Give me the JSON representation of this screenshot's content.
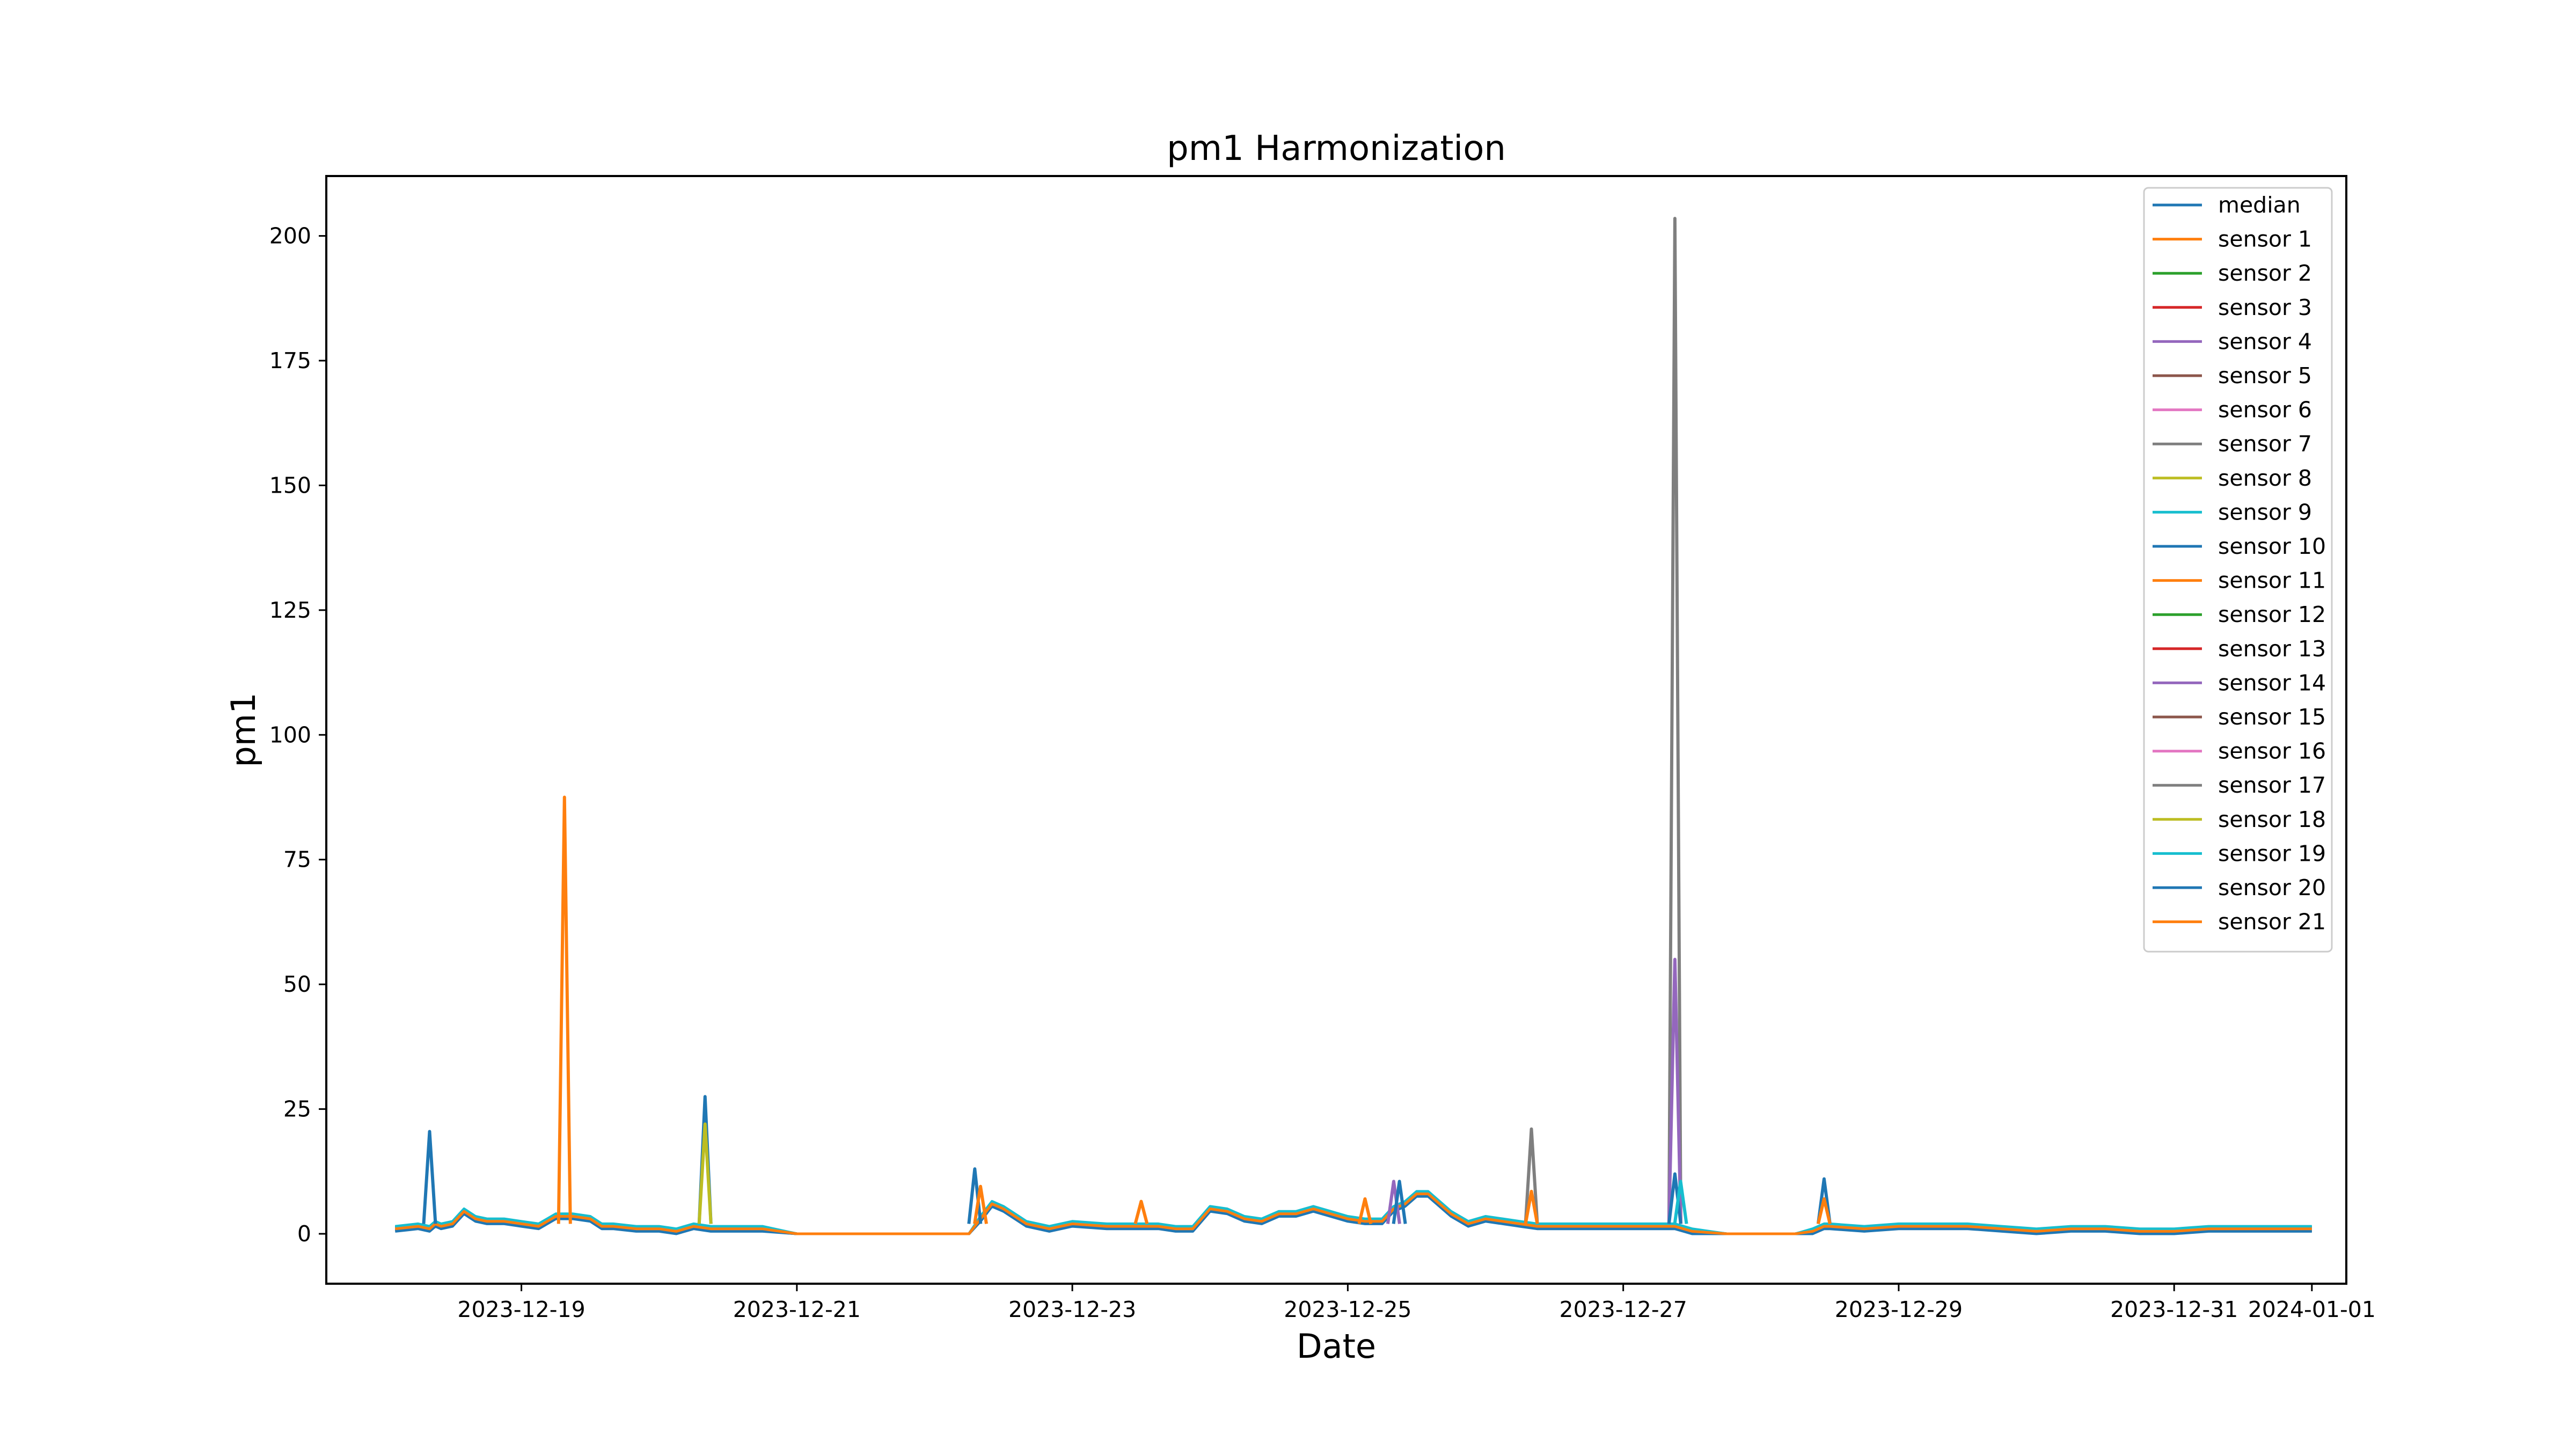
{
  "chart_data": {
    "type": "line",
    "title": "pm1 Harmonization",
    "xlabel": "Date",
    "ylabel": "pm1",
    "xlim": [
      "2023-12-17 14:00",
      "2024-01-01 06:00"
    ],
    "ylim": [
      -10,
      212
    ],
    "x_ticks": [
      "2023-12-19",
      "2023-12-21",
      "2023-12-23",
      "2023-12-25",
      "2023-12-27",
      "2023-12-29",
      "2023-12-31",
      "2024-01-01"
    ],
    "y_ticks": [
      0,
      25,
      50,
      75,
      100,
      125,
      150,
      175,
      200
    ],
    "grid": false,
    "legend_position": "top-right",
    "baseline": {
      "x": [
        "2023-12-18 02:00",
        "2023-12-18 06:00",
        "2023-12-18 08:00",
        "2023-12-18 09:00",
        "2023-12-18 10:00",
        "2023-12-18 12:00",
        "2023-12-18 14:00",
        "2023-12-18 16:00",
        "2023-12-18 18:00",
        "2023-12-18 21:00",
        "2023-12-19 00:00",
        "2023-12-19 03:00",
        "2023-12-19 06:00",
        "2023-12-19 09:00",
        "2023-12-19 12:00",
        "2023-12-19 14:00",
        "2023-12-19 16:00",
        "2023-12-19 20:00",
        "2023-12-20 00:00",
        "2023-12-20 03:00",
        "2023-12-20 06:00",
        "2023-12-20 09:00",
        "2023-12-20 12:00",
        "2023-12-20 15:00",
        "2023-12-20 18:00",
        "2023-12-21 00:00",
        "2023-12-21 06:00",
        "2023-12-21 12:00",
        "2023-12-21 18:00",
        "2023-12-22 00:00",
        "2023-12-22 03:00",
        "2023-12-22 06:00",
        "2023-12-22 08:00",
        "2023-12-22 10:00",
        "2023-12-22 12:00",
        "2023-12-22 16:00",
        "2023-12-22 20:00",
        "2023-12-23 00:00",
        "2023-12-23 06:00",
        "2023-12-23 12:00",
        "2023-12-23 15:00",
        "2023-12-23 18:00",
        "2023-12-23 21:00",
        "2023-12-24 00:00",
        "2023-12-24 03:00",
        "2023-12-24 06:00",
        "2023-12-24 09:00",
        "2023-12-24 12:00",
        "2023-12-24 15:00",
        "2023-12-24 18:00",
        "2023-12-24 21:00",
        "2023-12-25 00:00",
        "2023-12-25 03:00",
        "2023-12-25 06:00",
        "2023-12-25 08:00",
        "2023-12-25 10:00",
        "2023-12-25 12:00",
        "2023-12-25 14:00",
        "2023-12-25 18:00",
        "2023-12-25 21:00",
        "2023-12-26 00:00",
        "2023-12-26 03:00",
        "2023-12-26 06:00",
        "2023-12-26 09:00",
        "2023-12-26 12:00",
        "2023-12-26 18:00",
        "2023-12-27 00:00",
        "2023-12-27 06:00",
        "2023-12-27 09:00",
        "2023-12-27 12:00",
        "2023-12-27 18:00",
        "2023-12-28 00:00",
        "2023-12-28 06:00",
        "2023-12-28 09:00",
        "2023-12-28 11:00",
        "2023-12-28 12:00",
        "2023-12-28 18:00",
        "2023-12-29 00:00",
        "2023-12-29 06:00",
        "2023-12-29 12:00",
        "2023-12-29 18:00",
        "2023-12-30 00:00",
        "2023-12-30 06:00",
        "2023-12-30 12:00",
        "2023-12-30 18:00",
        "2023-12-31 00:00",
        "2023-12-31 06:00",
        "2023-12-31 12:00",
        "2023-12-31 18:00",
        "2024-01-01 00:00"
      ],
      "y": [
        1,
        1.5,
        1,
        2,
        1.5,
        2,
        4.5,
        3,
        2.5,
        2.5,
        2,
        1.5,
        3.5,
        3.5,
        3,
        1.5,
        1.5,
        1,
        1,
        0.5,
        1.5,
        1,
        1,
        1,
        1,
        0,
        0,
        0,
        0,
        0,
        0,
        0,
        3,
        6,
        5,
        2,
        1,
        2,
        1.5,
        1.5,
        1.5,
        1,
        1,
        5,
        4.5,
        3,
        2.5,
        4,
        4,
        5,
        4,
        3,
        2.5,
        2.5,
        5,
        6,
        8,
        8,
        4,
        2,
        3,
        2.5,
        2,
        1.5,
        1.5,
        1.5,
        1.5,
        1.5,
        1.5,
        0.5,
        0,
        0,
        0,
        0.5,
        1.5,
        1.5,
        1,
        1.5,
        1.5,
        1.5,
        1,
        0.5,
        1,
        1,
        0.5,
        0.5,
        1,
        1,
        1,
        1
      ]
    },
    "spikes": [
      {
        "x": "2023-12-18 08:00",
        "y": 20.5,
        "color": "#1f77b4"
      },
      {
        "x": "2023-12-19 07:30",
        "y": 87.5,
        "color": "#ff7f0e"
      },
      {
        "x": "2023-12-20 08:00",
        "y": 27.5,
        "color": "#1f77b4"
      },
      {
        "x": "2023-12-20 08:00",
        "y": 22,
        "color": "#bcbd22"
      },
      {
        "x": "2023-12-22 07:00",
        "y": 13,
        "color": "#1f77b4"
      },
      {
        "x": "2023-12-22 08:00",
        "y": 9.5,
        "color": "#ff7f0e"
      },
      {
        "x": "2023-12-23 12:00",
        "y": 6.5,
        "color": "#ff7f0e"
      },
      {
        "x": "2023-12-25 03:00",
        "y": 7,
        "color": "#ff7f0e"
      },
      {
        "x": "2023-12-25 08:00",
        "y": 10.5,
        "color": "#9467bd"
      },
      {
        "x": "2023-12-25 09:00",
        "y": 10.5,
        "color": "#1f77b4"
      },
      {
        "x": "2023-12-26 08:00",
        "y": 21,
        "color": "#7f7f7f"
      },
      {
        "x": "2023-12-26 08:00",
        "y": 8.5,
        "color": "#ff7f0e"
      },
      {
        "x": "2023-12-27 09:00",
        "y": 203.5,
        "color": "#7f7f7f"
      },
      {
        "x": "2023-12-27 09:00",
        "y": 55,
        "color": "#9467bd"
      },
      {
        "x": "2023-12-27 09:00",
        "y": 12,
        "color": "#1f77b4"
      },
      {
        "x": "2023-12-27 10:00",
        "y": 10.5,
        "color": "#17becf"
      },
      {
        "x": "2023-12-28 11:00",
        "y": 11,
        "color": "#1f77b4"
      },
      {
        "x": "2023-12-28 11:00",
        "y": 7,
        "color": "#ff7f0e"
      }
    ],
    "series": [
      {
        "name": "median",
        "color": "#1f77b4",
        "offset": 0
      },
      {
        "name": "sensor 1",
        "color": "#ff7f0e",
        "offset": 0.3
      },
      {
        "name": "sensor 2",
        "color": "#2ca02c",
        "offset": -0.2
      },
      {
        "name": "sensor 3",
        "color": "#d62728",
        "offset": 0.1
      },
      {
        "name": "sensor 4",
        "color": "#9467bd",
        "offset": -0.3
      },
      {
        "name": "sensor 5",
        "color": "#8c564b",
        "offset": 0.2
      },
      {
        "name": "sensor 6",
        "color": "#e377c2",
        "offset": -0.1
      },
      {
        "name": "sensor 7",
        "color": "#7f7f7f",
        "offset": 0.4
      },
      {
        "name": "sensor 8",
        "color": "#bcbd22",
        "offset": -0.4
      },
      {
        "name": "sensor 9",
        "color": "#17becf",
        "offset": 0.5
      },
      {
        "name": "sensor 10",
        "color": "#1f77b4",
        "offset": -0.5
      },
      {
        "name": "sensor 11",
        "color": "#ff7f0e",
        "offset": 0.2
      },
      {
        "name": "sensor 12",
        "color": "#2ca02c",
        "offset": -0.2
      },
      {
        "name": "sensor 13",
        "color": "#d62728",
        "offset": 0.1
      },
      {
        "name": "sensor 14",
        "color": "#9467bd",
        "offset": -0.1
      },
      {
        "name": "sensor 15",
        "color": "#8c564b",
        "offset": 0.3
      },
      {
        "name": "sensor 16",
        "color": "#e377c2",
        "offset": -0.3
      },
      {
        "name": "sensor 17",
        "color": "#7f7f7f",
        "offset": 0.2
      },
      {
        "name": "sensor 18",
        "color": "#bcbd22",
        "offset": -0.2
      },
      {
        "name": "sensor 19",
        "color": "#17becf",
        "offset": 0.4
      },
      {
        "name": "sensor 20",
        "color": "#1f77b4",
        "offset": -0.4
      },
      {
        "name": "sensor 21",
        "color": "#ff7f0e",
        "offset": 0
      }
    ]
  }
}
